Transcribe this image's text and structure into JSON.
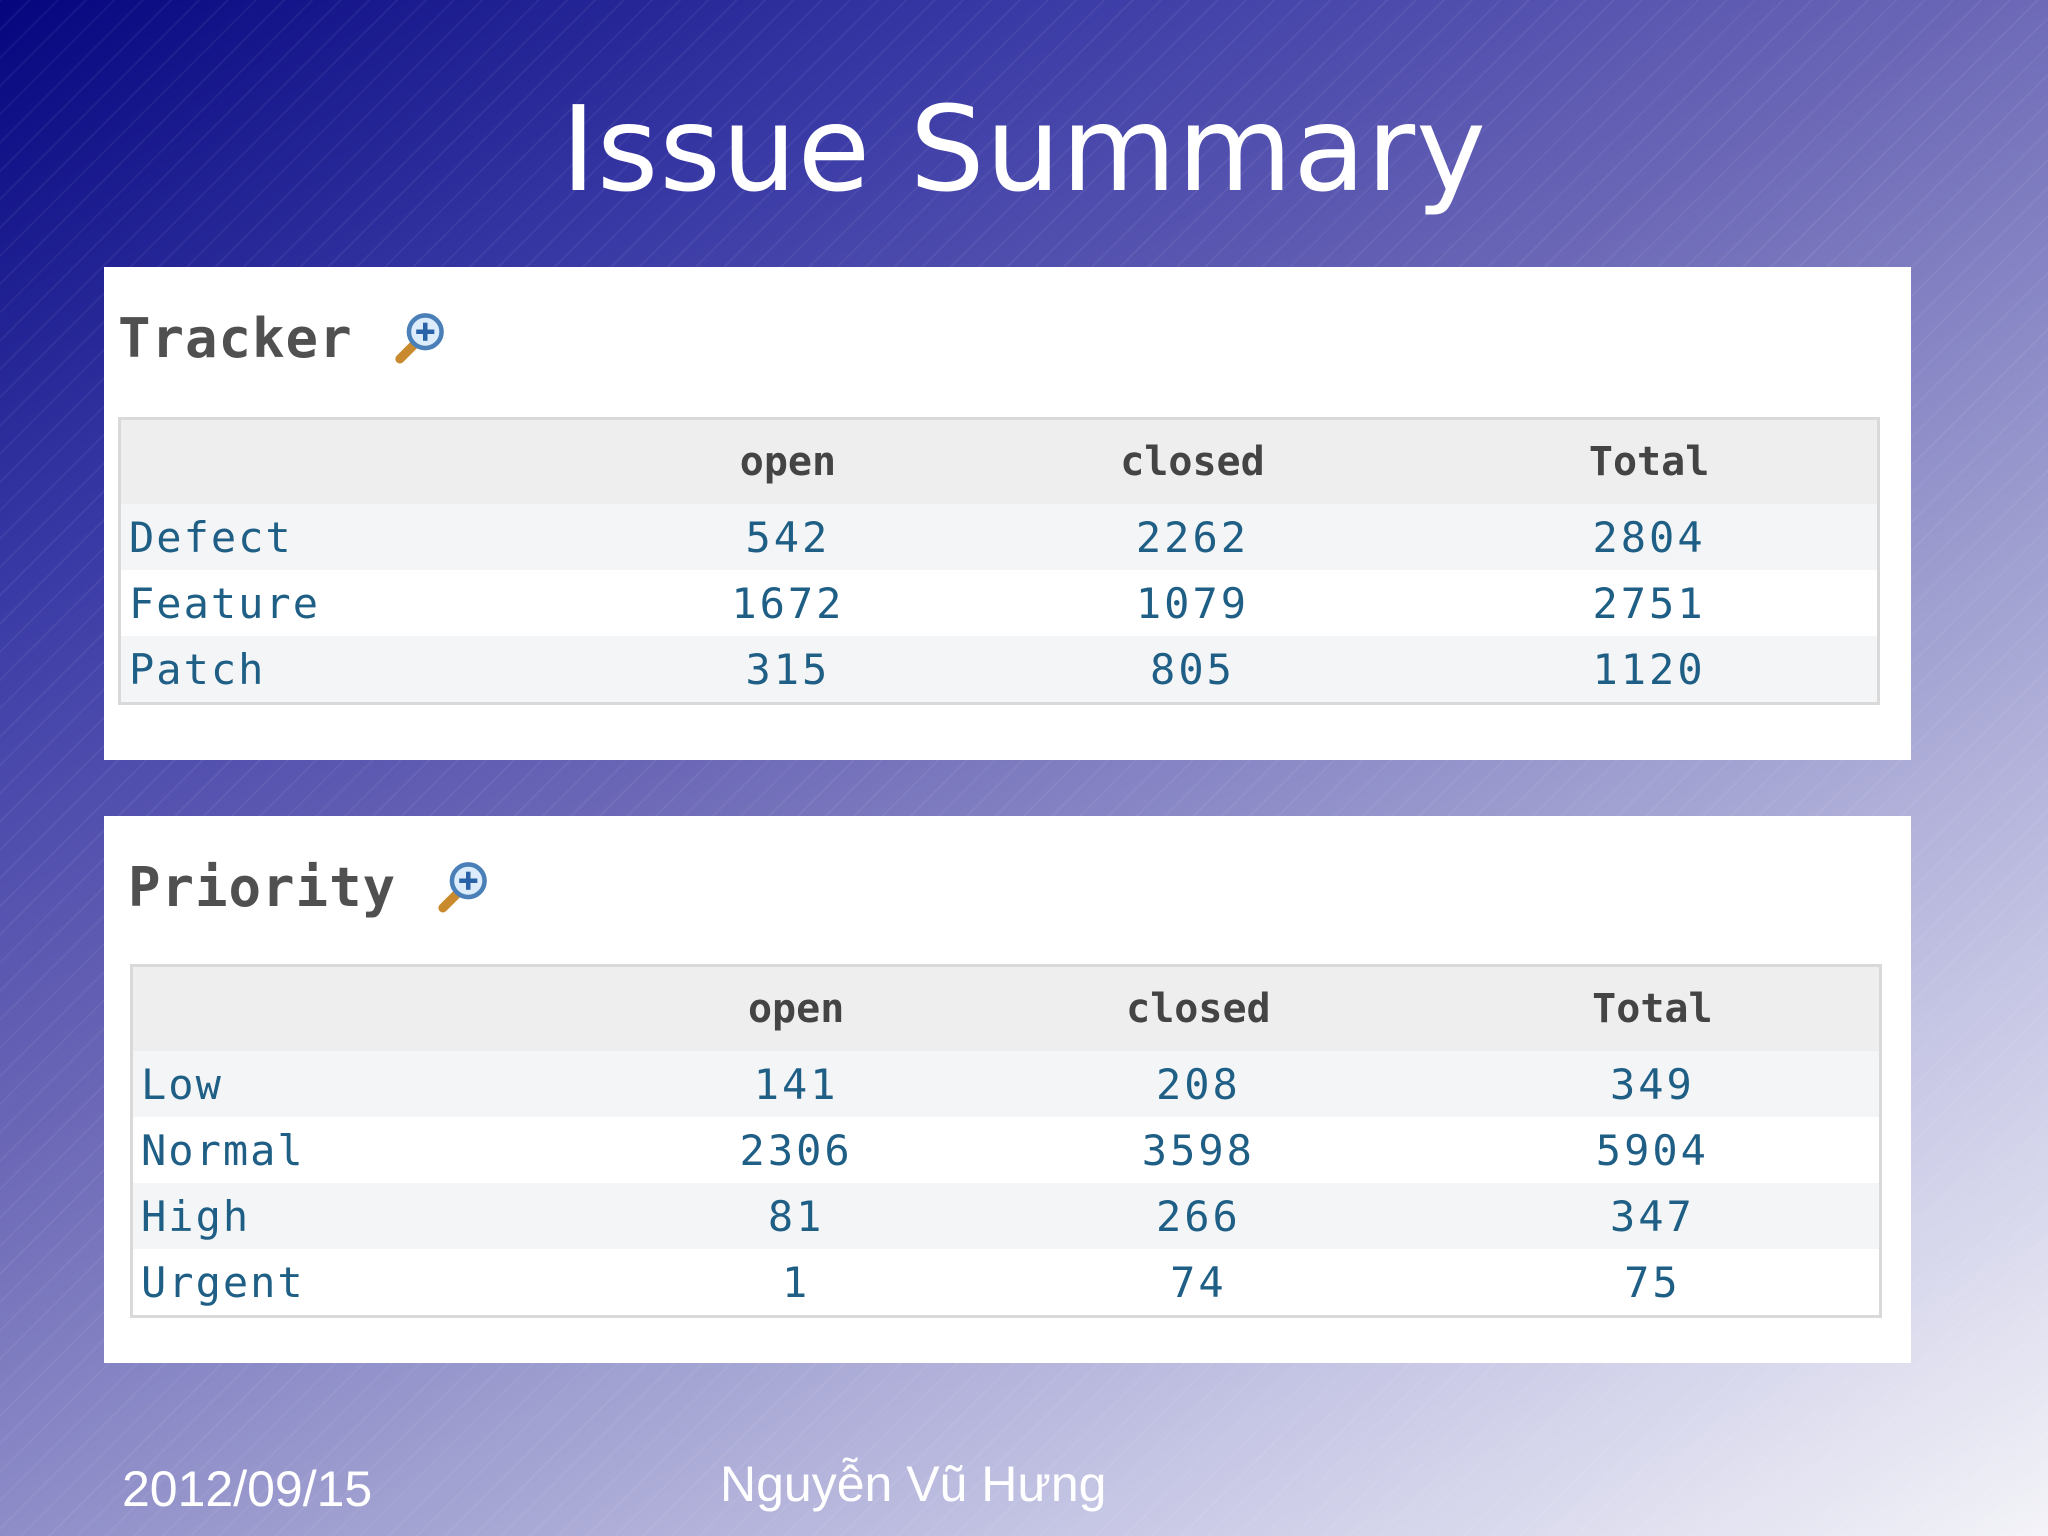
{
  "slide": {
    "title": "Issue Summary",
    "footer_date": "2012/09/15",
    "footer_author": "Nguyễn Vũ Hưng"
  },
  "tracker": {
    "heading": "Tracker",
    "icon": "zoom-icon",
    "columns": [
      "",
      "open",
      "closed",
      "Total"
    ],
    "rows": [
      {
        "label": "Defect",
        "open": "542",
        "closed": "2262",
        "total": "2804"
      },
      {
        "label": "Feature",
        "open": "1672",
        "closed": "1079",
        "total": "2751"
      },
      {
        "label": "Patch",
        "open": "315",
        "closed": "805",
        "total": "1120"
      }
    ]
  },
  "priority": {
    "heading": "Priority",
    "icon": "zoom-icon",
    "columns": [
      "",
      "open",
      "closed",
      "Total"
    ],
    "rows": [
      {
        "label": "Low",
        "open": "141",
        "closed": "208",
        "total": "349"
      },
      {
        "label": "Normal",
        "open": "2306",
        "closed": "3598",
        "total": "5904"
      },
      {
        "label": "High",
        "open": "81",
        "closed": "266",
        "total": "347"
      },
      {
        "label": "Urgent",
        "open": "1",
        "closed": "74",
        "total": "75"
      }
    ]
  },
  "colors": {
    "link_blue": "#1f5f85",
    "header_bg": "#eeeeee",
    "heading_gray": "#505050"
  }
}
